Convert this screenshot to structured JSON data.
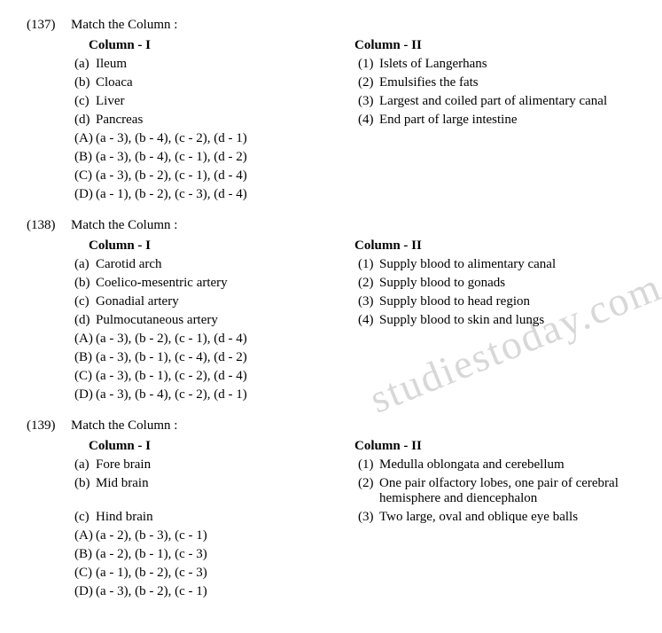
{
  "watermark": "studiestoday.com",
  "questions": [
    {
      "number": "(137)",
      "title": "Match the Column :",
      "col1_header": "Column - I",
      "col2_header": "Column - II",
      "rows": [
        {
          "c1_label": "(a)",
          "c1_text": "Ileum",
          "c2_label": "(1)",
          "c2_text": "Islets of Langerhans"
        },
        {
          "c1_label": "(b)",
          "c1_text": "Cloaca",
          "c2_label": "(2)",
          "c2_text": "Emulsifies the fats"
        },
        {
          "c1_label": "(c)",
          "c1_text": "Liver",
          "c2_label": "(3)",
          "c2_text": "Largest and coiled part of alimentary canal"
        },
        {
          "c1_label": "(d)",
          "c1_text": "Pancreas",
          "c2_label": "(4)",
          "c2_text": "End part of large intestine"
        }
      ],
      "options": [
        {
          "label": "(A)",
          "text": "(a - 3), (b - 4), (c - 2), (d - 1)"
        },
        {
          "label": "(B)",
          "text": "(a - 3), (b - 4), (c - 1), (d - 2)"
        },
        {
          "label": "(C)",
          "text": "(a - 3), (b - 2), (c - 1), (d - 4)"
        },
        {
          "label": "(D)",
          "text": "(a - 1), (b - 2), (c - 3), (d - 4)"
        }
      ]
    },
    {
      "number": "(138)",
      "title": "Match the Column :",
      "col1_header": "Column - I",
      "col2_header": "Column - II",
      "rows": [
        {
          "c1_label": "(a)",
          "c1_text": "Carotid arch",
          "c2_label": "(1)",
          "c2_text": "Supply blood to alimentary canal"
        },
        {
          "c1_label": "(b)",
          "c1_text": "Coelico-mesentric artery",
          "c2_label": "(2)",
          "c2_text": "Supply blood to gonads"
        },
        {
          "c1_label": "(c)",
          "c1_text": "Gonadial artery",
          "c2_label": "(3)",
          "c2_text": "Supply blood to head region"
        },
        {
          "c1_label": "(d)",
          "c1_text": "Pulmocutaneous artery",
          "c2_label": "(4)",
          "c2_text": "Supply blood to skin and lungs"
        }
      ],
      "options": [
        {
          "label": "(A)",
          "text": "(a - 3), (b - 2), (c - 1), (d - 4)"
        },
        {
          "label": "(B)",
          "text": "(a - 3), (b - 1), (c - 4), (d - 2)"
        },
        {
          "label": "(C)",
          "text": "(a - 3), (b - 1), (c - 2), (d - 4)"
        },
        {
          "label": "(D)",
          "text": "(a - 3), (b - 4), (c - 2), (d - 1)"
        }
      ]
    },
    {
      "number": "(139)",
      "title": "Match the Column :",
      "col1_header": "Column - I",
      "col2_header": "Column - II",
      "rows": [
        {
          "c1_label": "(a)",
          "c1_text": "Fore brain",
          "c2_label": "(1)",
          "c2_text": "Medulla oblongata and cerebellum"
        },
        {
          "c1_label": "(b)",
          "c1_text": "Mid brain",
          "c2_label": "(2)",
          "c2_text": "One pair olfactory lobes, one pair of cerebral hemisphere and diencephalon"
        },
        {
          "c1_label": "(c)",
          "c1_text": "Hind brain",
          "c2_label": "(3)",
          "c2_text": "Two large, oval and oblique eye balls"
        }
      ],
      "options": [
        {
          "label": "(A)",
          "text": "(a - 2), (b - 3), (c - 1)"
        },
        {
          "label": "(B)",
          "text": "(a - 2), (b - 1), (c - 3)"
        },
        {
          "label": "(C)",
          "text": "(a - 1), (b - 2), (c - 3)"
        },
        {
          "label": "(D)",
          "text": "(a - 3), (b - 2), (c - 1)"
        }
      ]
    }
  ]
}
